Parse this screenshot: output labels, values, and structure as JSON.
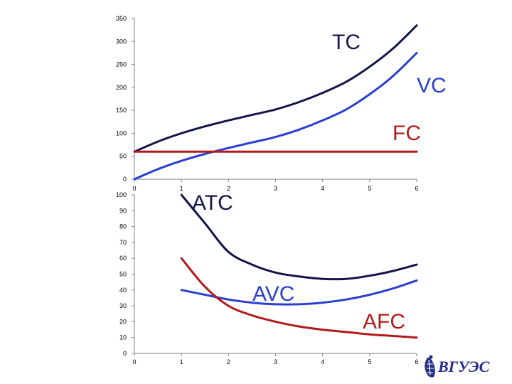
{
  "chart_data": [
    {
      "type": "line",
      "title": "",
      "xlabel": "",
      "ylabel": "",
      "xlim": [
        0,
        6
      ],
      "ylim": [
        0,
        350
      ],
      "x_ticks": [
        "0",
        "1",
        "2",
        "3",
        "4",
        "5",
        "6"
      ],
      "y_ticks": [
        "0",
        "50",
        "100",
        "150",
        "200",
        "250",
        "300",
        "350"
      ],
      "grid": false,
      "legend": "none",
      "series": [
        {
          "name": "TC",
          "color": "#14144a",
          "x": [
            0,
            0.5,
            1,
            1.5,
            2,
            2.5,
            3,
            3.5,
            4,
            4.5,
            5,
            5.5,
            6
          ],
          "values": [
            60,
            82,
            100,
            115,
            128,
            140,
            152,
            168,
            188,
            212,
            245,
            285,
            335
          ]
        },
        {
          "name": "VC",
          "color": "#2a3fd0",
          "x": [
            0,
            0.5,
            1,
            1.5,
            2,
            2.5,
            3,
            3.5,
            4,
            4.5,
            5,
            5.5,
            6
          ],
          "values": [
            0,
            22,
            40,
            55,
            68,
            80,
            92,
            108,
            128,
            152,
            185,
            225,
            275
          ]
        },
        {
          "name": "FC",
          "color": "#b21a1a",
          "x": [
            0,
            6
          ],
          "values": [
            60,
            60
          ]
        }
      ]
    },
    {
      "type": "line",
      "title": "",
      "xlabel": "",
      "ylabel": "",
      "xlim": [
        0,
        6
      ],
      "ylim": [
        0,
        100
      ],
      "x_ticks": [
        "0",
        "1",
        "2",
        "3",
        "4",
        "5",
        "6"
      ],
      "y_ticks": [
        "0",
        "10",
        "20",
        "30",
        "40",
        "50",
        "60",
        "70",
        "80",
        "90",
        "100"
      ],
      "grid": false,
      "legend": "none",
      "series": [
        {
          "name": "ATC",
          "color": "#14144a",
          "x": [
            1,
            1.5,
            2,
            2.5,
            3,
            3.5,
            4,
            4.5,
            5,
            5.5,
            6
          ],
          "values": [
            100,
            82,
            64,
            56,
            51,
            48.5,
            47,
            47,
            49,
            52,
            56
          ]
        },
        {
          "name": "AVC",
          "color": "#2a3fd0",
          "x": [
            1,
            1.5,
            2,
            2.5,
            3,
            3.5,
            4,
            4.5,
            5,
            5.5,
            6
          ],
          "values": [
            40,
            37,
            34,
            32,
            31,
            31,
            32,
            34,
            37,
            41,
            46
          ]
        },
        {
          "name": "AFC",
          "color": "#b21a1a",
          "x": [
            1,
            1.5,
            2,
            2.5,
            3,
            3.5,
            4,
            4.5,
            5,
            5.5,
            6
          ],
          "values": [
            60,
            42,
            30,
            24,
            20,
            17,
            15,
            13.5,
            12,
            11,
            10
          ]
        }
      ]
    }
  ],
  "logo": {
    "text": "ВГУЭС",
    "color": "#1f2a8a"
  }
}
